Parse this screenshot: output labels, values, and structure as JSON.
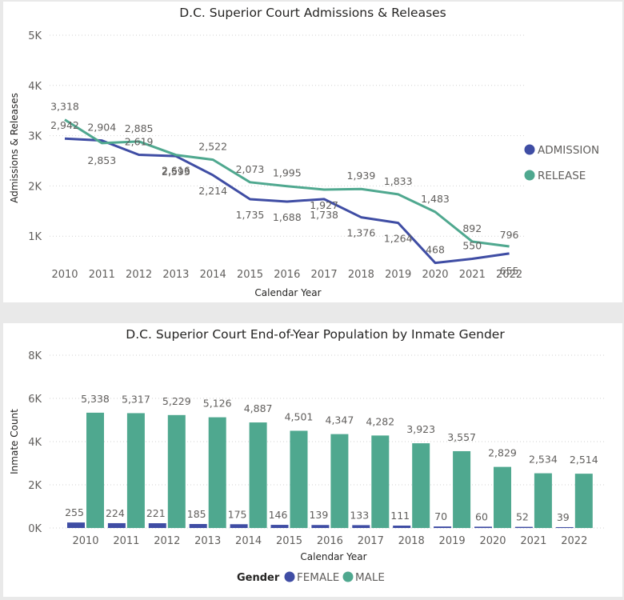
{
  "chart_data": [
    {
      "type": "line",
      "title": "D.C. Superior Court Admissions & Releases",
      "xlabel": "Calendar Year",
      "ylabel": "Admissions & Releases",
      "categories": [
        "2010",
        "2011",
        "2012",
        "2013",
        "2014",
        "2015",
        "2016",
        "2017",
        "2018",
        "2019",
        "2020",
        "2021",
        "2022"
      ],
      "ylim": [
        0,
        5000
      ],
      "yticks": [
        1000,
        2000,
        3000,
        4000,
        5000
      ],
      "ytick_labels": [
        "1K",
        "2K",
        "3K",
        "4K",
        "5K"
      ],
      "grid": true,
      "legend": "right",
      "series": [
        {
          "name": "ADMISSION",
          "color": "#3f4da4",
          "values": [
            2942,
            2904,
            2619,
            2593,
            2214,
            1735,
            1688,
            1738,
            1376,
            1264,
            468,
            550,
            655
          ],
          "labels": [
            "2,942",
            "2,904",
            "2,619",
            "2,593",
            "2,214",
            "1,735",
            "1,688",
            "1,738",
            "1,376",
            "1,264",
            "468",
            "550",
            "655"
          ]
        },
        {
          "name": "RELEASE",
          "color": "#4fa88f",
          "values": [
            3318,
            2853,
            2885,
            2616,
            2522,
            2073,
            1995,
            1927,
            1939,
            1833,
            1483,
            892,
            796
          ],
          "labels": [
            "3,318",
            "2,853",
            "2,885",
            "2,616",
            "2,522",
            "2,073",
            "1,995",
            "1,927",
            "1,939",
            "1,833",
            "1,483",
            "892",
            "796"
          ]
        }
      ]
    },
    {
      "type": "bar",
      "title": "D.C. Superior Court End-of-Year Population by Inmate Gender",
      "xlabel": "Calendar Year",
      "ylabel": "Inmate Count",
      "categories": [
        "2010",
        "2011",
        "2012",
        "2013",
        "2014",
        "2015",
        "2016",
        "2017",
        "2018",
        "2019",
        "2020",
        "2021",
        "2022"
      ],
      "ylim": [
        0,
        8000
      ],
      "yticks": [
        0,
        2000,
        4000,
        6000,
        8000
      ],
      "ytick_labels": [
        "0K",
        "2K",
        "4K",
        "6K",
        "8K"
      ],
      "grid": true,
      "legend": "bottom",
      "legend_title": "Gender",
      "series": [
        {
          "name": "FEMALE",
          "color": "#3f4da4",
          "values": [
            255,
            224,
            221,
            185,
            175,
            146,
            139,
            133,
            111,
            70,
            60,
            52,
            39
          ],
          "labels": [
            "255",
            "224",
            "221",
            "185",
            "175",
            "146",
            "139",
            "133",
            "111",
            "70",
            "60",
            "52",
            "39"
          ]
        },
        {
          "name": "MALE",
          "color": "#4fa88f",
          "values": [
            5338,
            5317,
            5229,
            5126,
            4887,
            4501,
            4347,
            4282,
            3923,
            3557,
            2829,
            2534,
            2514
          ],
          "labels": [
            "5,338",
            "5,317",
            "5,229",
            "5,126",
            "4,887",
            "4,501",
            "4,347",
            "4,282",
            "3,923",
            "3,557",
            "2,829",
            "2,534",
            "2,514"
          ]
        }
      ]
    }
  ]
}
